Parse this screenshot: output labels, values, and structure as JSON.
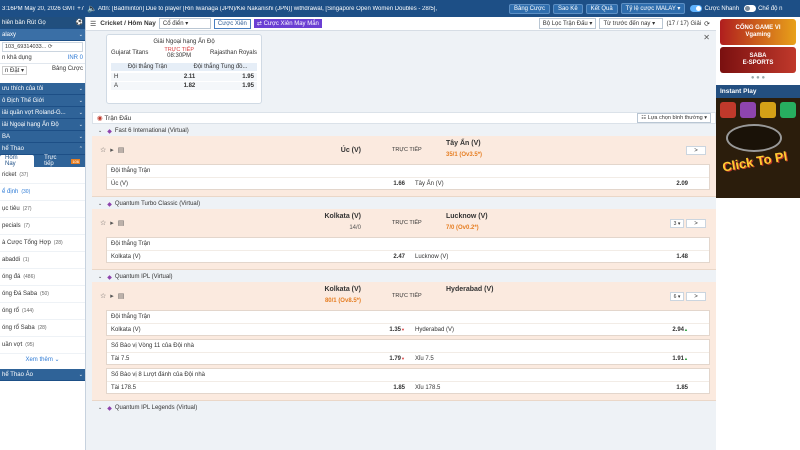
{
  "topbar": {
    "time": "3:16PM May 20, 2026 GMT +7",
    "ticker": "Attn: [Badminton] Due to player [Rin Iwanaga (JPN)/Kie Nakanishi (JPN)] withdrawal, [Singapore Open Women Doubles - 28/5],",
    "buttons": [
      "Bảng Cược",
      "Sao Kê",
      "Kết Quả",
      "Tỷ lệ cược MALAY"
    ],
    "toggle1": "Cược Nhanh",
    "toggle2": "Chế độ n",
    "colors": {
      "bar": "#1d4f86",
      "accent": "#5fb3ff"
    }
  },
  "sidebar": {
    "header1": "hiên bản Rút Gọ",
    "account_name": "alaxy",
    "account_id": "103_69314033...",
    "credit_label": "n khả dụng",
    "credit_value": "INR 0",
    "tab_left": "n Đặt",
    "tab_right": "Bảng Cược",
    "sections": [
      "ưu thích của tôi",
      "ô Địch Thế Giới",
      "iải quần vợt Roland-G...",
      "iải Ngoại hạng Ấn Độ",
      "BA",
      "hể Thao"
    ],
    "sub_tabs": [
      "Hôm Nay",
      "Trực tiếp"
    ],
    "sub_badge": "106",
    "sports": [
      {
        "name": "ricket",
        "count": "(37)"
      },
      {
        "name": "ể định",
        "count": "(30)"
      },
      {
        "name": "ục tiêu",
        "count": "(27)"
      },
      {
        "name": "pecials",
        "count": "(7)"
      },
      {
        "name": "à Cược Tổng Hợp",
        "count": "(28)"
      },
      {
        "name": "abaddi",
        "count": "(1)"
      },
      {
        "name": "óng đá",
        "count": "(486)"
      },
      {
        "name": "óng Đá Saba",
        "count": "(50)"
      },
      {
        "name": "óng rổ",
        "count": "(144)"
      },
      {
        "name": "óng rổ Saba",
        "count": "(28)"
      },
      {
        "name": "uần vợt",
        "count": "(95)"
      }
    ],
    "see_more": "Xem thêm",
    "bottom_section": "hể Thao Ảo"
  },
  "filter": {
    "sport": "Cricket / Hôm Nay",
    "mode": "Cổ điển",
    "cuoc_xien": "Cược Xiên",
    "cuoc_xien_may_man": "Cược Xiên May Mắn",
    "loc": "Bộ Lọc Trận Đấu",
    "sort": "Từ trước đến nay",
    "count": "(17 / 17) Giải"
  },
  "promo": {
    "title": "Giải Ngoại hạng Ấn Độ",
    "team_home": "Gujarat Titans",
    "team_away": "Rajasthan Royals",
    "live": "TRỰC TIẾP",
    "time": "08:30PM",
    "head_left": "Đội thắng Trận",
    "head_right": "Đội thắng Tung đồ...",
    "row1_label": "H",
    "row1_v1": "2.11",
    "row1_v2": "1.95",
    "row2_label": "A",
    "row2_v1": "1.82",
    "row2_v2": "1.95"
  },
  "matchlist": {
    "header": "Trận Đấu",
    "sort": "Lựa chọn bình thường",
    "live": "TRỰC TIẾP",
    "leagues": [
      {
        "name": "Fast 6 International (Virtual)",
        "home": "Úc (V)",
        "away": "Tây Ấn (V)",
        "away_score": "35/1 (Ov3.5*)",
        "more": ">",
        "markets": [
          {
            "title": "Đội thắng Trận",
            "lines": [
              {
                "left": "Úc (V)",
                "lo": "1.66",
                "right": "Tây Ấn (V)",
                "ro": "2.09"
              }
            ]
          }
        ]
      },
      {
        "name": "Quantum Turbo Classic (Virtual)",
        "home": "Kolkata (V)",
        "home_score": "14/0",
        "away": "Lucknow (V)",
        "away_score": "7/0 (Ov0.2*)",
        "more_count": "3 ▾",
        "more": ">",
        "markets": [
          {
            "title": "Đội thắng Trận",
            "lines": [
              {
                "left": "Kolkata (V)",
                "lo": "2.47",
                "right": "Lucknow (V)",
                "ro": "1.48"
              }
            ]
          }
        ]
      },
      {
        "name": "Quantum IPL (Virtual)",
        "home": "Kolkata (V)",
        "home_score": "80/1 (Ov8.5*)",
        "away": "Hyderabad (V)",
        "more_count": "6 ▾",
        "more": ">",
        "markets": [
          {
            "title": "Đội thắng Trận",
            "lines": [
              {
                "left": "Kolkata (V)",
                "lo": "1.35",
                "right": "Hyderabad (V)",
                "ro": "2.94"
              }
            ]
          },
          {
            "title": "Số Bào vị Vòng 11 của Đội nhà",
            "lines": [
              {
                "left": "Tài 7.5",
                "lo": "1.79",
                "right": "Xỉu 7.5",
                "ro": "1.91"
              }
            ]
          },
          {
            "title": "Số Bào vị 8 Lượt đánh của Đội nhà",
            "lines": [
              {
                "left": "Tài 178.5",
                "lo": "1.85",
                "right": "Xỉu 178.5",
                "ro": "1.85"
              }
            ]
          }
        ]
      }
    ],
    "next_league": "Quantum IPL Legends (Virtual)"
  },
  "right": {
    "banner1": "CỔNG GAME VI\nVgaming",
    "banner2": "SABA\nE-SPORTS",
    "instant_title": "Instant Play",
    "instant_game": "Click To Pl"
  }
}
